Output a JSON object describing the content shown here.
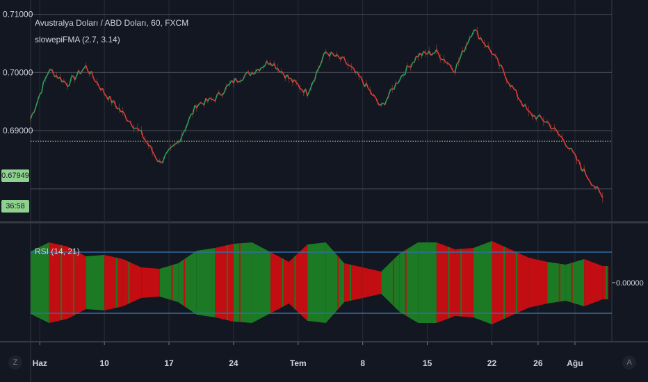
{
  "chart_data": [
    {
      "type": "line",
      "title": "Avustralya Doları / ABD Doları, 60, FXCM",
      "indicator": "slowepiFMA (2.7, 3.14)",
      "y_ticks": [
        "0.71000",
        "0.70000",
        "0.69000"
      ],
      "ylim": [
        0.6745,
        0.7115
      ],
      "grid": true,
      "current_price": "0.67949",
      "countdown": "36:58",
      "dotted_level": 0.6882,
      "x": [
        0,
        2,
        4,
        6,
        8,
        10,
        12,
        14,
        16,
        18,
        20,
        22,
        24,
        26,
        28,
        30,
        32,
        34,
        36,
        38,
        40,
        42,
        44,
        46,
        48,
        50,
        52,
        54,
        56,
        58,
        60,
        62
      ],
      "series": [
        {
          "color_up": "#27a35a",
          "color_down": "#e53935",
          "values": [
            0.692,
            0.7005,
            0.698,
            0.701,
            0.6965,
            0.693,
            0.6895,
            0.6845,
            0.688,
            0.6945,
            0.6955,
            0.6985,
            0.7,
            0.702,
            0.699,
            0.6965,
            0.7035,
            0.702,
            0.6985,
            0.694,
            0.699,
            0.703,
            0.7035,
            0.7005,
            0.7075,
            0.7035,
            0.698,
            0.693,
            0.6915,
            0.688,
            0.683,
            0.6785
          ]
        }
      ]
    },
    {
      "type": "area",
      "title": "RSI (14, 21)",
      "y_tick": "0.00000",
      "color_up": "#1b7a23",
      "color_down": "#c20e12",
      "bands": 2,
      "x": [
        0,
        2,
        4,
        6,
        8,
        10,
        12,
        14,
        16,
        18,
        20,
        22,
        24,
        26,
        28,
        30,
        32,
        34,
        36,
        38,
        40,
        42,
        44,
        46,
        48,
        50,
        52,
        54,
        56,
        58,
        60,
        62
      ],
      "amplitude": [
        45,
        58,
        52,
        38,
        40,
        34,
        22,
        20,
        28,
        46,
        50,
        56,
        58,
        44,
        30,
        55,
        58,
        28,
        22,
        16,
        42,
        58,
        58,
        48,
        50,
        60,
        48,
        36,
        30,
        26,
        34,
        24
      ],
      "sign": [
        1,
        -1,
        -1,
        1,
        -1,
        -1,
        -1,
        1,
        1,
        1,
        -1,
        1,
        1,
        -1,
        -1,
        1,
        1,
        -1,
        -1,
        1,
        1,
        1,
        -1,
        -1,
        1,
        -1,
        -1,
        -1,
        1,
        1,
        -1,
        -1
      ]
    }
  ],
  "x_ticks": [
    {
      "label": "Haz",
      "x": 1
    },
    {
      "label": "10",
      "x": 8
    },
    {
      "label": "17",
      "x": 15
    },
    {
      "label": "24",
      "x": 22
    },
    {
      "label": "Tem",
      "x": 29
    },
    {
      "label": "8",
      "x": 36
    },
    {
      "label": "15",
      "x": 43
    },
    {
      "label": "22",
      "x": 50
    },
    {
      "label": "26",
      "x": 55
    },
    {
      "label": "Ağu",
      "x": 59
    }
  ],
  "corner_buttons": {
    "left": "Z",
    "right": "A"
  },
  "colors": {
    "background": "#131722",
    "grid": "#2a2e39",
    "hline": "#434651",
    "band": "#2f6fa8",
    "dotted": "#a8e6a0",
    "tag": "#8fd18e"
  }
}
